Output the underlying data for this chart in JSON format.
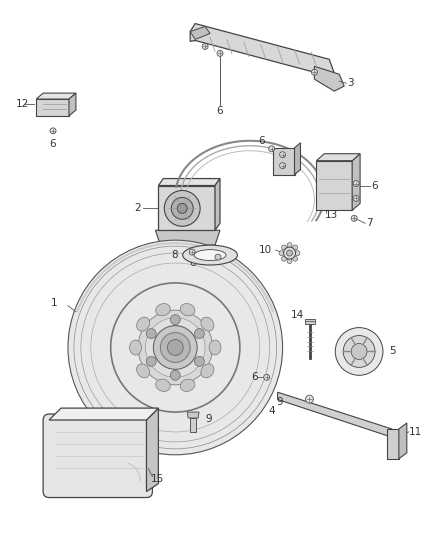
{
  "background_color": "#ffffff",
  "line_color": "#444444",
  "label_color": "#333333",
  "fig_width": 4.38,
  "fig_height": 5.33,
  "dpi": 100
}
